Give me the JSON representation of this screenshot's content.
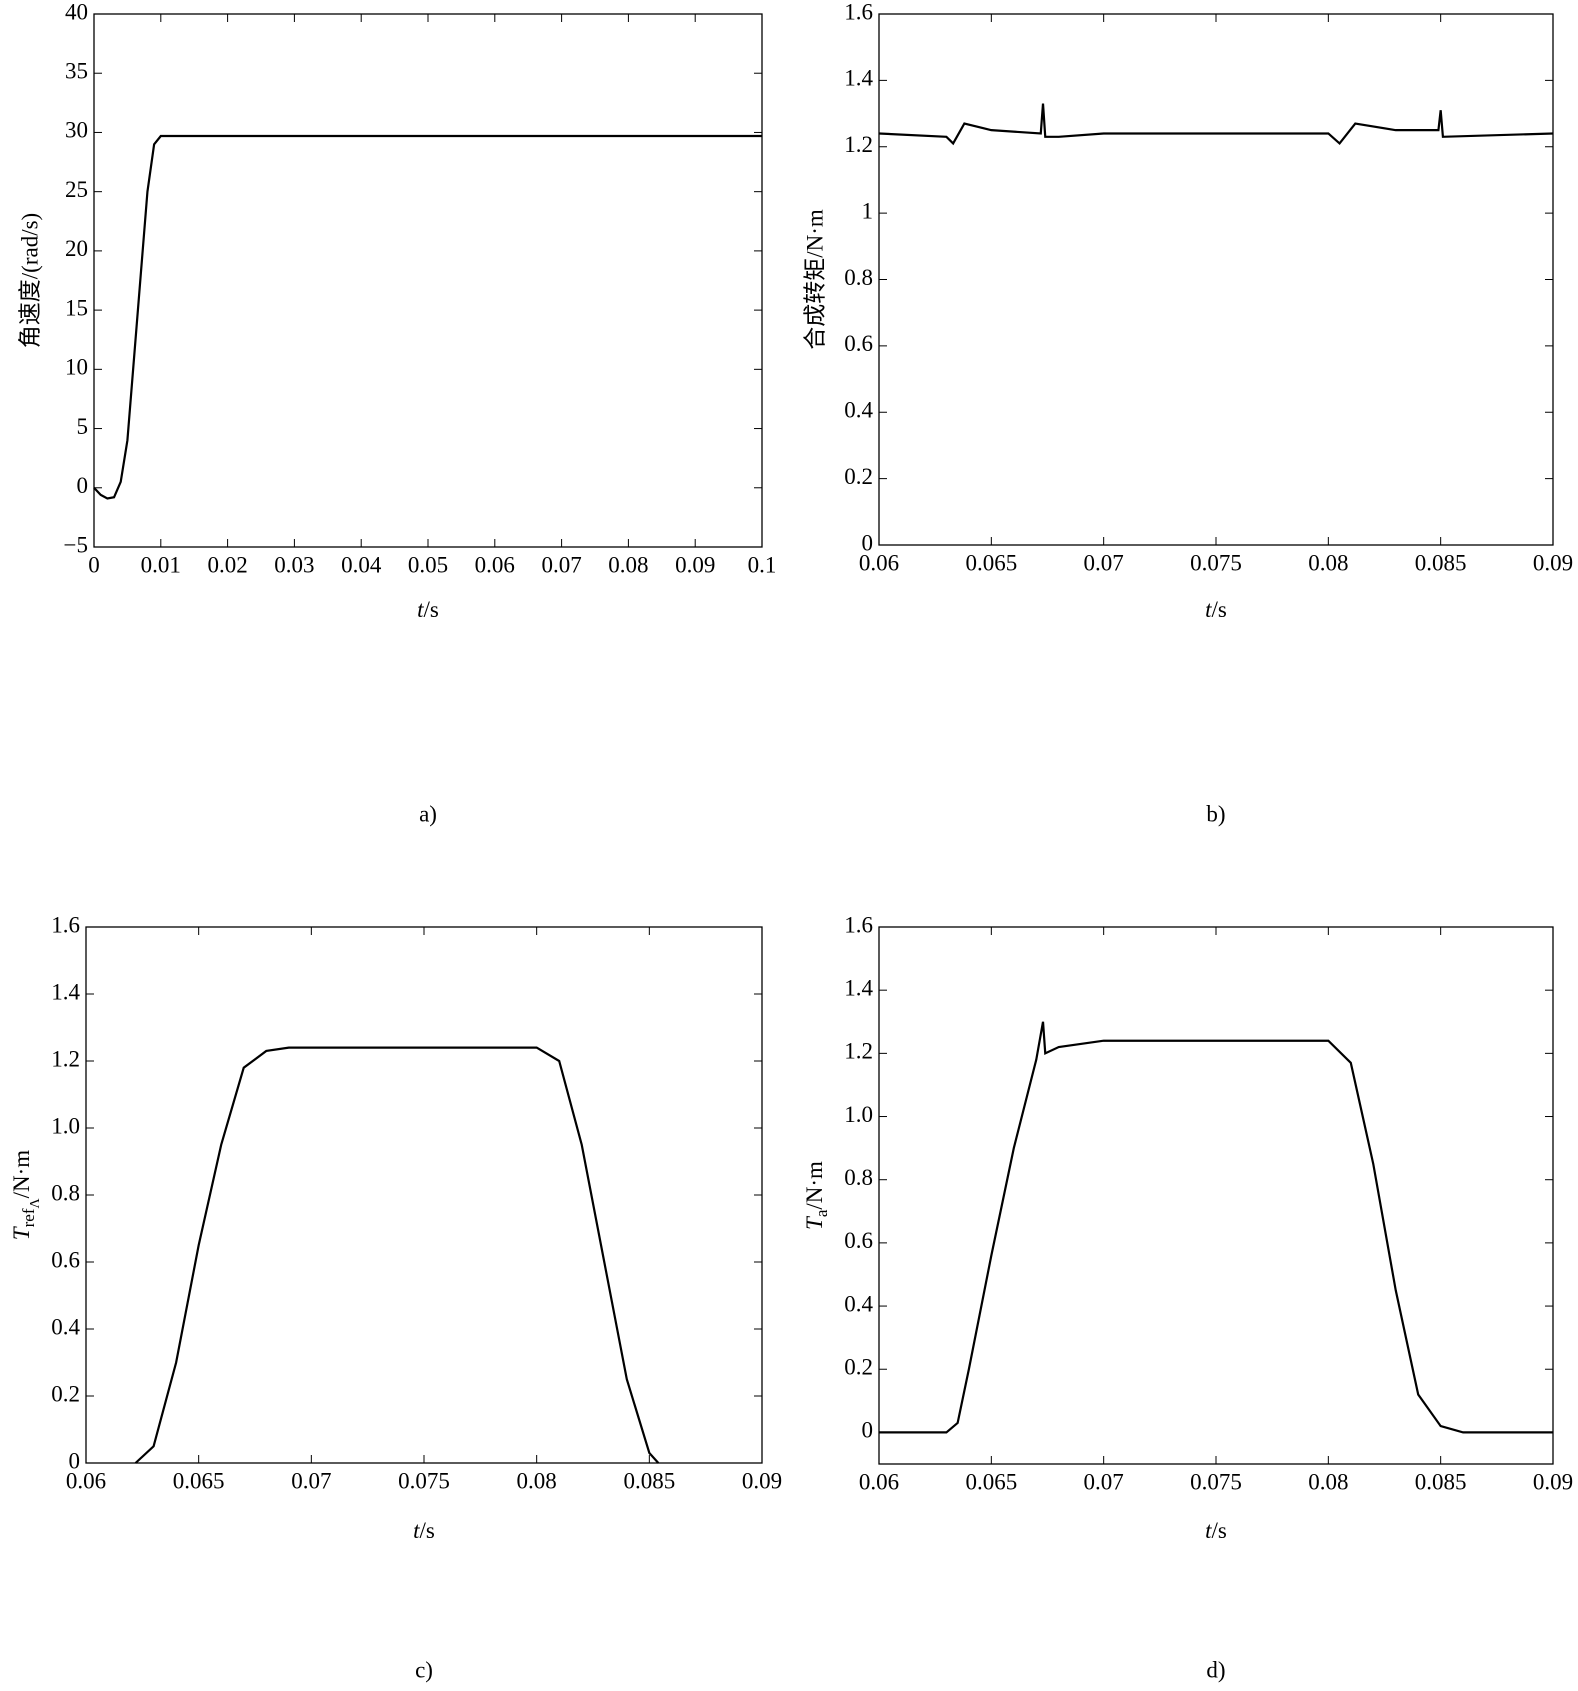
{
  "chart_data": [
    {
      "type": "line",
      "caption": "a)",
      "ylabel": "角速度/(rad/s)",
      "xlabel": {
        "symbol": "t",
        "unit": "/s"
      },
      "xlim": [
        0,
        0.1
      ],
      "xticks": [
        0,
        0.01,
        0.02,
        0.03,
        0.04,
        0.05,
        0.06,
        0.07,
        0.08,
        0.09,
        0.1
      ],
      "ylim": [
        -5,
        40
      ],
      "yticks": [
        {
          "value": -5,
          "label": "−5"
        },
        0,
        5,
        10,
        15,
        20,
        25,
        30,
        35,
        40
      ],
      "x": [
        0,
        0.001,
        0.002,
        0.003,
        0.004,
        0.005,
        0.006,
        0.007,
        0.008,
        0.009,
        0.01,
        0.012,
        0.1
      ],
      "series": [
        {
          "color": "#000000",
          "values": [
            0,
            -0.6,
            -0.9,
            -0.8,
            0.5,
            4,
            11,
            18,
            25,
            29,
            29.7,
            29.7,
            29.7
          ]
        }
      ]
    },
    {
      "type": "line",
      "caption": "b)",
      "ylabel": "合成转矩/N·m",
      "xlabel": {
        "symbol": "t",
        "unit": "/s"
      },
      "xlim": [
        0.06,
        0.09
      ],
      "xticks": [
        0.06,
        0.065,
        0.07,
        0.075,
        0.08,
        0.085,
        0.09
      ],
      "ylim": [
        0,
        1.6
      ],
      "yticks": [
        0,
        0.2,
        0.4,
        0.6,
        0.8,
        1,
        1.2,
        1.4,
        1.6
      ],
      "x": [
        0.06,
        0.063,
        0.0633,
        0.0638,
        0.065,
        0.0672,
        0.0673,
        0.0674,
        0.068,
        0.07,
        0.08,
        0.0805,
        0.0812,
        0.083,
        0.0849,
        0.085,
        0.0851,
        0.09
      ],
      "series": [
        {
          "color": "#000000",
          "values": [
            1.24,
            1.23,
            1.21,
            1.27,
            1.25,
            1.24,
            1.33,
            1.23,
            1.23,
            1.24,
            1.24,
            1.21,
            1.27,
            1.25,
            1.25,
            1.31,
            1.23,
            1.24
          ]
        }
      ]
    },
    {
      "type": "line",
      "caption": "c)",
      "ylabel": {
        "symbol": "T",
        "subscript": "ref",
        "subscript_sub": "Λ",
        "unit": "/N·m"
      },
      "xlabel": {
        "symbol": "t",
        "unit": "/s"
      },
      "xlim": [
        0.06,
        0.09
      ],
      "xticks": [
        0.06,
        0.065,
        0.07,
        0.075,
        0.08,
        0.085,
        0.09
      ],
      "ylim": [
        0,
        1.6
      ],
      "yticks": [
        0,
        0.2,
        0.4,
        0.6,
        0.8,
        {
          "value": 1,
          "label": "1.0"
        },
        1.2,
        1.4,
        1.6
      ],
      "x": [
        0.0622,
        0.063,
        0.064,
        0.065,
        0.066,
        0.067,
        0.068,
        0.069,
        0.08,
        0.081,
        0.082,
        0.083,
        0.084,
        0.085,
        0.0854
      ],
      "series": [
        {
          "color": "#000000",
          "values": [
            0,
            0.05,
            0.3,
            0.65,
            0.95,
            1.18,
            1.23,
            1.24,
            1.24,
            1.2,
            0.95,
            0.6,
            0.25,
            0.03,
            0
          ]
        }
      ]
    },
    {
      "type": "line",
      "caption": "d)",
      "ylabel": {
        "symbol": "T",
        "subscript": "a",
        "unit": "/N·m"
      },
      "xlabel": {
        "symbol": "t",
        "unit": "/s"
      },
      "xlim": [
        0.06,
        0.09
      ],
      "xticks": [
        0.06,
        0.065,
        0.07,
        0.075,
        0.08,
        0.085,
        0.09
      ],
      "ylim": [
        -0.1,
        1.6
      ],
      "yticks": [
        0,
        0.2,
        0.4,
        0.6,
        0.8,
        {
          "value": 1,
          "label": "1.0"
        },
        1.2,
        1.4,
        1.6
      ],
      "x": [
        0.06,
        0.063,
        0.0635,
        0.064,
        0.065,
        0.066,
        0.067,
        0.0673,
        0.0674,
        0.068,
        0.07,
        0.08,
        0.081,
        0.082,
        0.083,
        0.084,
        0.085,
        0.086,
        0.09
      ],
      "series": [
        {
          "color": "#000000",
          "values": [
            0,
            0,
            0.03,
            0.2,
            0.56,
            0.9,
            1.18,
            1.3,
            1.2,
            1.22,
            1.24,
            1.24,
            1.17,
            0.85,
            0.45,
            0.12,
            0.02,
            0,
            0
          ]
        }
      ]
    }
  ]
}
